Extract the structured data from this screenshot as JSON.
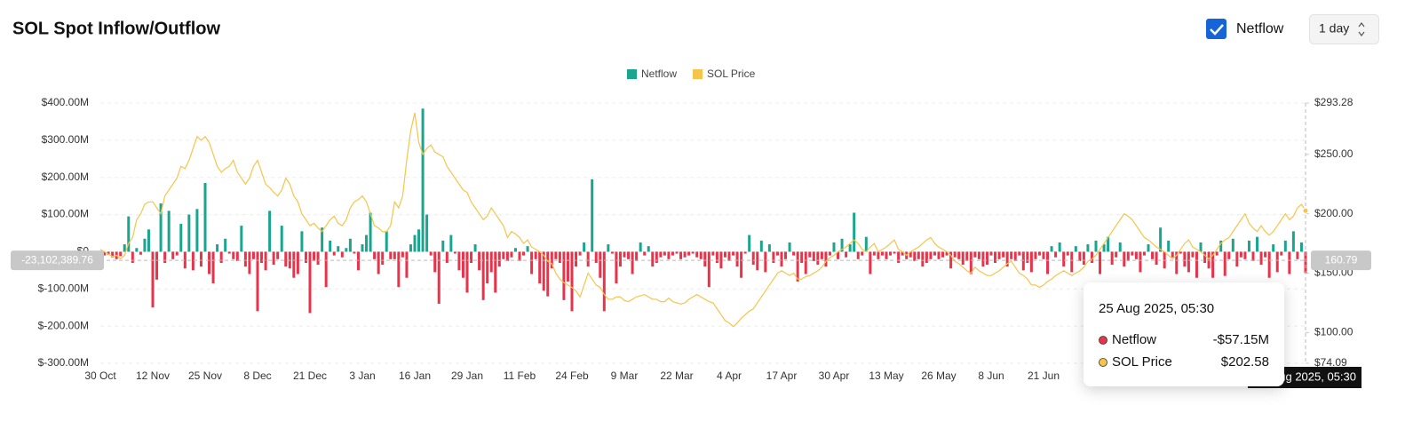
{
  "controls": {
    "checkbox_label": "Netflow",
    "interval": "1 day"
  },
  "tooltip": {
    "date": "25 Aug 2025, 05:30",
    "rows": [
      {
        "name": "Netflow",
        "value": {
          "value": -57.15,
          "label": "-$57.15M"
        }
      },
      {
        "name": "SOL Price",
        "value": {
          "value": 202.58,
          "label": "$202.58"
        }
      }
    ]
  },
  "crosshair": {
    "y": {
      "value": -23.10238976,
      "label": "-23,102,389.76"
    },
    "y2": {
      "value": 160.79,
      "label": "160.79"
    }
  },
  "chart_data": {
    "type": "bar",
    "title": "SOL Spot Inflow/Outflow",
    "legend": "top",
    "grid": true,
    "ylim": [
      -300,
      400
    ],
    "yticks": [
      {
        "value": 400,
        "label": "$400.00M"
      },
      {
        "value": 300,
        "label": "$300.00M"
      },
      {
        "value": 200,
        "label": "$200.00M"
      },
      {
        "value": 100,
        "label": "$100.00M"
      },
      {
        "value": 0,
        "label": "$0"
      },
      {
        "value": -100,
        "label": "$-100.00M"
      },
      {
        "value": -200,
        "label": "$-200.00M"
      },
      {
        "value": -300,
        "label": "$-300.00M"
      }
    ],
    "y2lim": [
      74.09,
      293.28
    ],
    "y2ticks": [
      {
        "value": 293.28,
        "label": "$293.28"
      },
      {
        "value": 250,
        "label": "$250.00"
      },
      {
        "value": 200,
        "label": "$200.00"
      },
      {
        "value": 150,
        "label": "$150.00"
      },
      {
        "value": 100,
        "label": "$100.00"
      },
      {
        "value": 74.09,
        "label": "$74.09"
      }
    ],
    "categories": [
      "30 Oct",
      null,
      null,
      null,
      null,
      null,
      null,
      null,
      null,
      null,
      null,
      null,
      null,
      "12 Nov",
      null,
      null,
      null,
      null,
      null,
      null,
      null,
      null,
      null,
      null,
      null,
      null,
      "25 Nov",
      null,
      null,
      null,
      null,
      null,
      null,
      null,
      null,
      null,
      null,
      null,
      null,
      "8 Dec",
      null,
      null,
      null,
      null,
      null,
      null,
      null,
      null,
      null,
      null,
      null,
      null,
      "21 Dec",
      null,
      null,
      null,
      null,
      null,
      null,
      null,
      null,
      null,
      null,
      null,
      null,
      "3 Jan",
      null,
      null,
      null,
      null,
      null,
      null,
      null,
      null,
      null,
      null,
      null,
      null,
      "16 Jan",
      null,
      null,
      null,
      null,
      null,
      null,
      null,
      null,
      null,
      null,
      null,
      null,
      "29 Jan",
      null,
      null,
      null,
      null,
      null,
      null,
      null,
      null,
      null,
      null,
      null,
      null,
      "11 Feb",
      null,
      null,
      null,
      null,
      null,
      null,
      null,
      null,
      null,
      null,
      null,
      null,
      "24 Feb",
      null,
      null,
      null,
      null,
      null,
      null,
      null,
      null,
      null,
      null,
      null,
      null,
      "9 Mar",
      null,
      null,
      null,
      null,
      null,
      null,
      null,
      null,
      null,
      null,
      null,
      null,
      "22 Mar",
      null,
      null,
      null,
      null,
      null,
      null,
      null,
      null,
      null,
      null,
      null,
      null,
      "4 Apr",
      null,
      null,
      null,
      null,
      null,
      null,
      null,
      null,
      null,
      null,
      null,
      null,
      "17 Apr",
      null,
      null,
      null,
      null,
      null,
      null,
      null,
      null,
      null,
      null,
      null,
      null,
      "30 Apr",
      null,
      null,
      null,
      null,
      null,
      null,
      null,
      null,
      null,
      null,
      null,
      null,
      "13 May",
      null,
      null,
      null,
      null,
      null,
      null,
      null,
      null,
      null,
      null,
      null,
      null,
      "26 May",
      null,
      null,
      null,
      null,
      null,
      null,
      null,
      null,
      null,
      null,
      null,
      null,
      "8 Jun",
      null,
      null,
      null,
      null,
      null,
      null,
      null,
      null,
      null,
      null,
      null,
      null,
      "21 Jun",
      null,
      null,
      null,
      null,
      null,
      null,
      null,
      null,
      null,
      null,
      null,
      null,
      null,
      null,
      null,
      null,
      null,
      null,
      null,
      null,
      null,
      null,
      null,
      null,
      null,
      null,
      null,
      null,
      null,
      null,
      null,
      null,
      null,
      null,
      null,
      null,
      null,
      null,
      null,
      null,
      null,
      null,
      null,
      null,
      null,
      null,
      null,
      null,
      null,
      null,
      null,
      null,
      null,
      null,
      null,
      null,
      null,
      null,
      null,
      null,
      null,
      null,
      null,
      null,
      null
    ],
    "series": [
      {
        "name": "Netflow",
        "type": "bar",
        "color": "#1aa58f",
        "negative_color": "#e8334a",
        "values": [
          -5,
          -10,
          -8,
          -15,
          -20,
          -12,
          20,
          95,
          -30,
          10,
          -8,
          35,
          60,
          -150,
          -75,
          130,
          -30,
          110,
          -20,
          -10,
          75,
          -45,
          100,
          -50,
          115,
          -40,
          185,
          -60,
          -85,
          20,
          -30,
          35,
          -5,
          -20,
          -25,
          70,
          -40,
          -60,
          -20,
          -160,
          -30,
          -50,
          110,
          -35,
          -20,
          70,
          -40,
          -45,
          -70,
          -60,
          55,
          -30,
          -165,
          -25,
          -35,
          65,
          -95,
          30,
          -10,
          15,
          -15,
          10,
          35,
          -5,
          -50,
          20,
          45,
          105,
          -20,
          -60,
          -35,
          55,
          -20,
          -20,
          -95,
          -15,
          -70,
          20,
          45,
          60,
          385,
          100,
          -10,
          -55,
          -140,
          30,
          -30,
          45,
          -5,
          -50,
          -70,
          -110,
          -30,
          20,
          -50,
          -130,
          -85,
          -55,
          -110,
          -40,
          -20,
          -25,
          -15,
          10,
          -25,
          -10,
          15,
          -60,
          -20,
          -85,
          -105,
          -120,
          -45,
          -20,
          -30,
          -130,
          -80,
          -160,
          -40,
          -10,
          25,
          -40,
          195,
          -30,
          -70,
          -160,
          20,
          -5,
          -85,
          -40,
          -15,
          -20,
          -60,
          -25,
          25,
          -10,
          15,
          -40,
          -30,
          -15,
          -10,
          -20,
          -10,
          -5,
          -20,
          -15,
          -10,
          -5,
          -15,
          -20,
          -40,
          -95,
          -10,
          -30,
          -45,
          -15,
          -25,
          -10,
          -40,
          -70,
          -5,
          45,
          -35,
          -50,
          30,
          -55,
          20,
          -30,
          -10,
          -40,
          -20,
          25,
          -10,
          -80,
          -30,
          -60,
          -15,
          -25,
          -35,
          -20,
          -40,
          -10,
          25,
          -20,
          35,
          -15,
          20,
          105,
          -20,
          -10,
          40,
          -60,
          -10,
          -20,
          -10,
          -20,
          -10,
          -5,
          -30,
          -10,
          -20,
          -15,
          -25,
          -20,
          -40,
          -30,
          -20,
          -10,
          -20,
          -15,
          -10,
          -45,
          -15,
          -20,
          -35,
          -25,
          -60,
          -15,
          -20,
          -40,
          -35,
          -10,
          -30,
          -20,
          -15,
          -40,
          -20,
          -25,
          -10,
          -50,
          -30,
          -55,
          -20,
          -10,
          -20,
          -60,
          15,
          -15,
          25,
          -40,
          -10,
          -55,
          15,
          -25,
          -35,
          20,
          -30,
          30,
          -60,
          20,
          40,
          -35,
          -15,
          25,
          -40,
          -25,
          -10,
          -20,
          -55,
          -10,
          20,
          -20,
          -35,
          65,
          -45,
          30,
          -15,
          -60,
          -5,
          -40,
          -55,
          -15,
          -70,
          25,
          -30,
          -45,
          -70,
          -10,
          30,
          -65,
          -20,
          35,
          -40,
          -15,
          -20,
          30,
          -25,
          40,
          -35,
          -15,
          -70,
          20,
          -55,
          -10,
          30,
          -60,
          55,
          -20,
          25,
          -57.15
        ]
      },
      {
        "name": "SOL Price",
        "type": "line",
        "axis": "y2",
        "color": "#f5c54a",
        "values": [
          170,
          168,
          166,
          164,
          165,
          162,
          165,
          175,
          180,
          195,
          200,
          208,
          210,
          210,
          205,
          200,
          215,
          220,
          225,
          230,
          240,
          238,
          245,
          255,
          265,
          262,
          265,
          260,
          250,
          240,
          235,
          238,
          240,
          245,
          235,
          230,
          225,
          230,
          240,
          245,
          235,
          225,
          222,
          218,
          215,
          220,
          230,
          225,
          215,
          210,
          200,
          195,
          190,
          192,
          188,
          185,
          190,
          195,
          198,
          192,
          190,
          195,
          205,
          210,
          212,
          215,
          210,
          200,
          190,
          188,
          185,
          185,
          190,
          210,
          205,
          215,
          245,
          270,
          285,
          260,
          250,
          255,
          258,
          252,
          250,
          248,
          240,
          235,
          230,
          225,
          220,
          218,
          210,
          205,
          200,
          195,
          198,
          205,
          200,
          195,
          190,
          180,
          185,
          183,
          180,
          175,
          178,
          172,
          170,
          168,
          165,
          160,
          158,
          150,
          145,
          142,
          140,
          138,
          135,
          130,
          140,
          150,
          145,
          140,
          138,
          132,
          128,
          128,
          130,
          130,
          127,
          126,
          128,
          130,
          131,
          132,
          130,
          128,
          128,
          126,
          126,
          129,
          126,
          125,
          124,
          125,
          128,
          130,
          132,
          130,
          128,
          126,
          125,
          120,
          115,
          110,
          108,
          105,
          108,
          112,
          115,
          118,
          120,
          125,
          130,
          135,
          140,
          145,
          150,
          152,
          150,
          148,
          150,
          145,
          145,
          147,
          148,
          150,
          152,
          155,
          160,
          163,
          165,
          168,
          170,
          172,
          175,
          178,
          175,
          170,
          168,
          172,
          175,
          168,
          170,
          172,
          175,
          178,
          170,
          168,
          165,
          168,
          170,
          172,
          175,
          178,
          180,
          175,
          172,
          170,
          168,
          165,
          160,
          158,
          155,
          152,
          150,
          155,
          152,
          150,
          148,
          148,
          150,
          152,
          155,
          158,
          160,
          155,
          150,
          148,
          145,
          140,
          140,
          138,
          140,
          143,
          145,
          148,
          150,
          152,
          150,
          148,
          150,
          152,
          155,
          160,
          162,
          165,
          170,
          175,
          180,
          185,
          190,
          195,
          200,
          198,
          195,
          190,
          185,
          180,
          178,
          175,
          172,
          170,
          168,
          165,
          162,
          165,
          170,
          175,
          178,
          172,
          170,
          168,
          165,
          162,
          165,
          170,
          175,
          178,
          180,
          185,
          190,
          195,
          200,
          192,
          188,
          185,
          190,
          185,
          182,
          185,
          190,
          195,
          200,
          195,
          198,
          205,
          208,
          202.58
        ]
      }
    ]
  }
}
